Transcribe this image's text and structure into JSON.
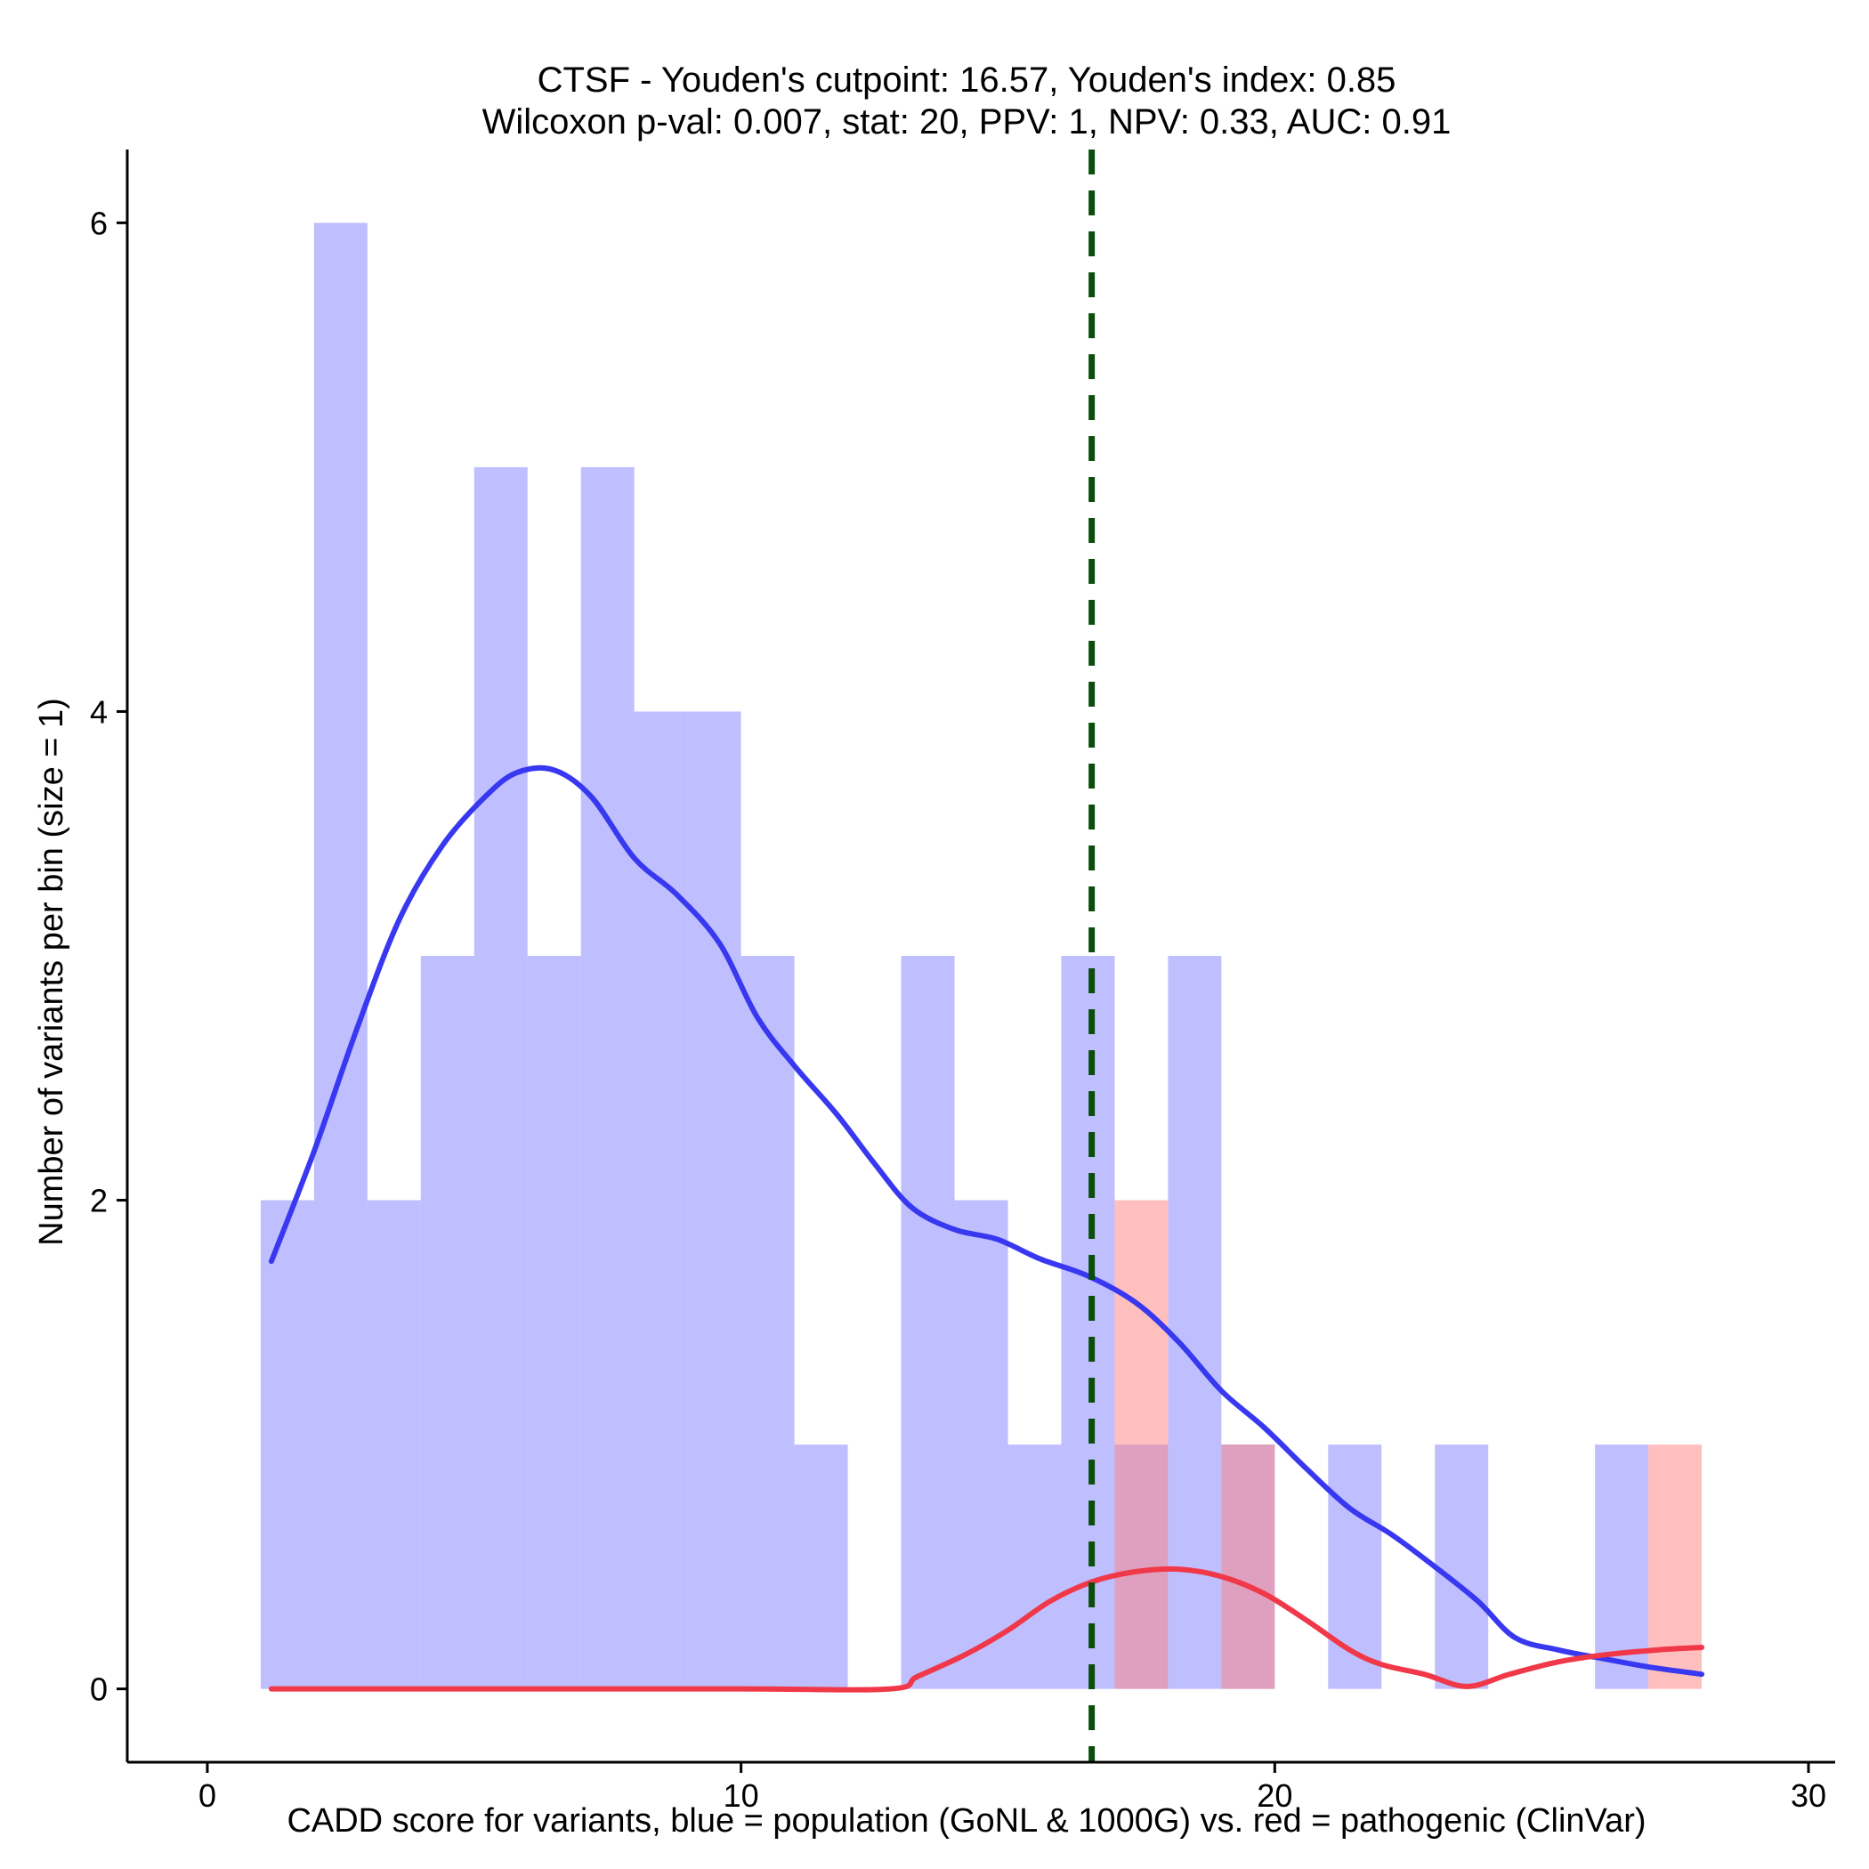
{
  "chart_data": {
    "type": "histogram",
    "title_line1": "CTSF - Youden's cutpoint: 16.57, Youden's index: 0.85",
    "title_line2": "Wilcoxon p-val: 0.007, stat: 20, PPV: 1, NPV: 0.33, AUC: 0.91",
    "xlabel": "CADD score for variants, blue = population (GoNL & 1000G) vs. red = pathogenic (ClinVar)",
    "ylabel": "Number of variants per bin (size = 1)",
    "xlim": [
      -1.5,
      30.5
    ],
    "ylim": [
      -0.3,
      6.3
    ],
    "x_ticks": [
      {
        "value": 0,
        "label": "0"
      },
      {
        "value": 10,
        "label": "10"
      },
      {
        "value": 20,
        "label": "20"
      },
      {
        "value": 30,
        "label": "30"
      }
    ],
    "y_ticks": [
      {
        "value": 0,
        "label": "0"
      },
      {
        "value": 2,
        "label": "2"
      },
      {
        "value": 4,
        "label": "4"
      },
      {
        "value": 6,
        "label": "6"
      }
    ],
    "cutpoint": {
      "value": 16.57,
      "color": "#0b4d0b"
    },
    "series": [
      {
        "name": "population (GoNL & 1000G)",
        "color": "#8080ff",
        "line_color": "#3838f0",
        "bins": [
          {
            "x0": 1,
            "x1": 2,
            "count": 2
          },
          {
            "x0": 2,
            "x1": 3,
            "count": 6
          },
          {
            "x0": 3,
            "x1": 4,
            "count": 2
          },
          {
            "x0": 4,
            "x1": 5,
            "count": 3
          },
          {
            "x0": 5,
            "x1": 6,
            "count": 5
          },
          {
            "x0": 6,
            "x1": 7,
            "count": 3
          },
          {
            "x0": 7,
            "x1": 8,
            "count": 5
          },
          {
            "x0": 8,
            "x1": 9,
            "count": 4
          },
          {
            "x0": 9,
            "x1": 10,
            "count": 4
          },
          {
            "x0": 10,
            "x1": 11,
            "count": 3
          },
          {
            "x0": 11,
            "x1": 12,
            "count": 1
          },
          {
            "x0": 13,
            "x1": 14,
            "count": 3
          },
          {
            "x0": 14,
            "x1": 15,
            "count": 2
          },
          {
            "x0": 15,
            "x1": 16,
            "count": 1
          },
          {
            "x0": 16,
            "x1": 17,
            "count": 3
          },
          {
            "x0": 17,
            "x1": 18,
            "count": 1
          },
          {
            "x0": 18,
            "x1": 19,
            "count": 3
          },
          {
            "x0": 19,
            "x1": 20,
            "count": 1
          },
          {
            "x0": 21,
            "x1": 22,
            "count": 1
          },
          {
            "x0": 23,
            "x1": 24,
            "count": 1
          },
          {
            "x0": 26,
            "x1": 27,
            "count": 1
          }
        ],
        "density": [
          [
            1.2,
            1.75
          ],
          [
            2.0,
            2.2
          ],
          [
            2.8,
            2.7
          ],
          [
            3.6,
            3.15
          ],
          [
            4.4,
            3.45
          ],
          [
            5.2,
            3.65
          ],
          [
            5.8,
            3.75
          ],
          [
            6.5,
            3.76
          ],
          [
            7.2,
            3.65
          ],
          [
            8.0,
            3.4
          ],
          [
            8.8,
            3.25
          ],
          [
            9.6,
            3.05
          ],
          [
            10.3,
            2.75
          ],
          [
            11.0,
            2.55
          ],
          [
            11.8,
            2.35
          ],
          [
            12.5,
            2.15
          ],
          [
            13.2,
            1.97
          ],
          [
            14.0,
            1.88
          ],
          [
            14.8,
            1.84
          ],
          [
            15.6,
            1.76
          ],
          [
            16.5,
            1.69
          ],
          [
            17.4,
            1.58
          ],
          [
            18.2,
            1.42
          ],
          [
            19.0,
            1.22
          ],
          [
            19.8,
            1.07
          ],
          [
            20.6,
            0.9
          ],
          [
            21.4,
            0.74
          ],
          [
            22.2,
            0.63
          ],
          [
            23.0,
            0.5
          ],
          [
            23.8,
            0.36
          ],
          [
            24.5,
            0.21
          ],
          [
            25.3,
            0.16
          ],
          [
            26.0,
            0.13
          ],
          [
            27.0,
            0.09
          ],
          [
            28.0,
            0.06
          ]
        ]
      },
      {
        "name": "pathogenic (ClinVar)",
        "color": "#ff8080",
        "line_color": "#f03848",
        "bins": [
          {
            "x0": 17,
            "x1": 18,
            "count": 2
          },
          {
            "x0": 19,
            "x1": 20,
            "count": 1
          },
          {
            "x0": 27,
            "x1": 28,
            "count": 1
          }
        ],
        "density": [
          [
            1.2,
            0.0
          ],
          [
            5.0,
            0.0
          ],
          [
            10.0,
            0.0
          ],
          [
            12.8,
            0.0
          ],
          [
            13.3,
            0.05
          ],
          [
            14.2,
            0.14
          ],
          [
            15.0,
            0.24
          ],
          [
            15.8,
            0.36
          ],
          [
            16.6,
            0.44
          ],
          [
            17.4,
            0.48
          ],
          [
            18.2,
            0.49
          ],
          [
            19.0,
            0.46
          ],
          [
            19.8,
            0.39
          ],
          [
            20.6,
            0.28
          ],
          [
            21.4,
            0.16
          ],
          [
            22.0,
            0.1
          ],
          [
            22.8,
            0.06
          ],
          [
            23.6,
            0.01
          ],
          [
            24.4,
            0.06
          ],
          [
            25.3,
            0.11
          ],
          [
            26.2,
            0.14
          ],
          [
            27.2,
            0.16
          ],
          [
            28.0,
            0.17
          ]
        ]
      }
    ]
  }
}
